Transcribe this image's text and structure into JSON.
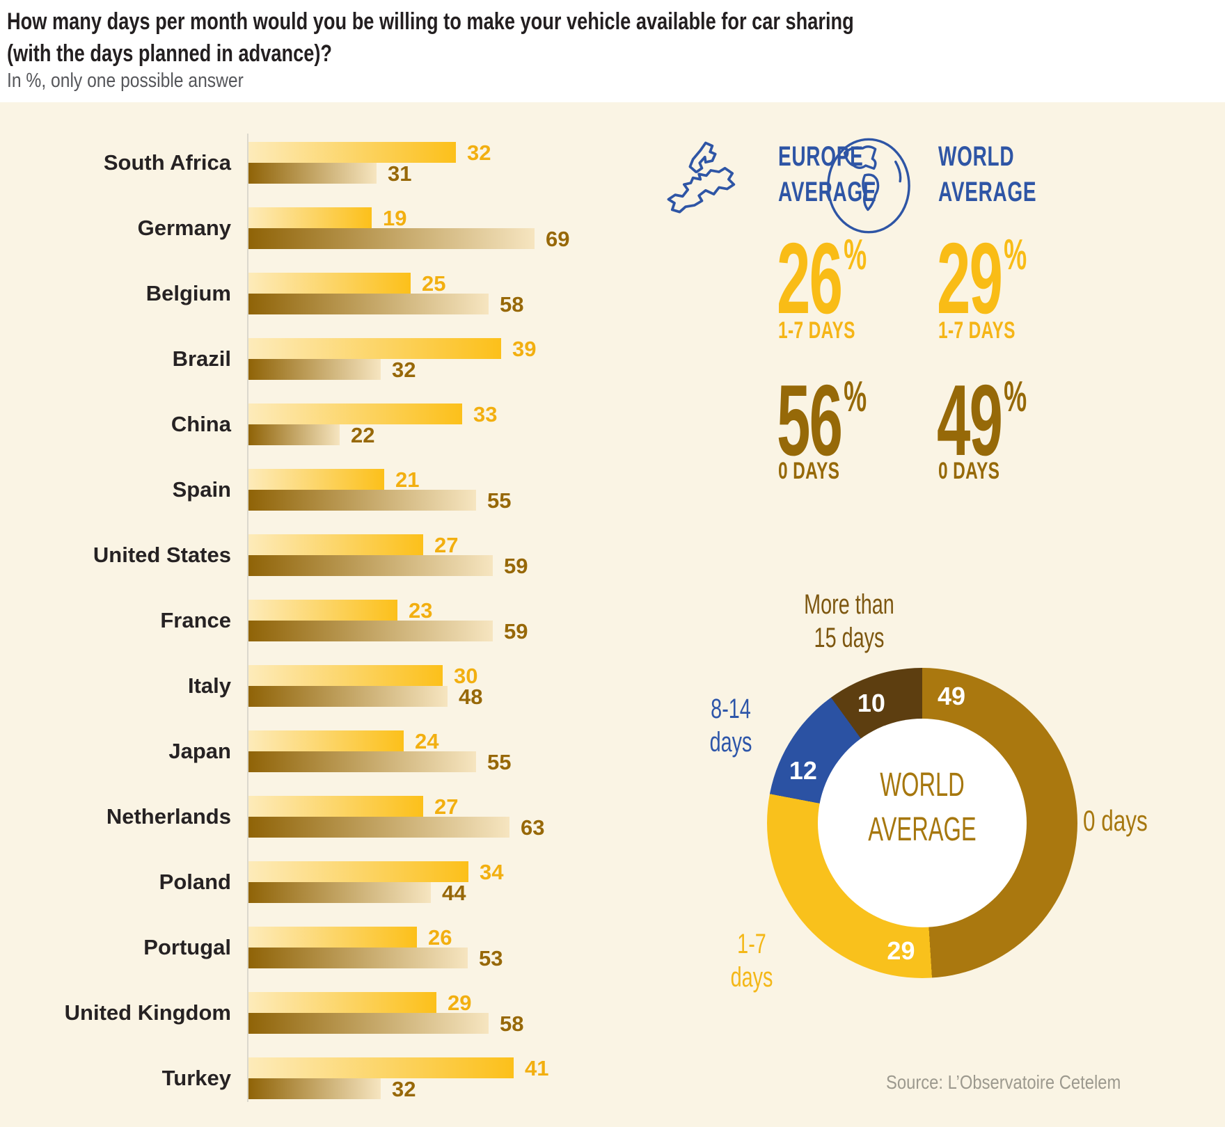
{
  "header": {
    "title_line1": "How many days per month would you be willing to make your vehicle available for car sharing",
    "title_line2": "(with the days planned in advance)?",
    "subtitle": "In %, only one possible answer"
  },
  "chart_data": [
    {
      "type": "bar",
      "orientation": "horizontal",
      "unit": "%",
      "value_labels": true,
      "categories": [
        "South Africa",
        "Germany",
        "Belgium",
        "Brazil",
        "China",
        "Spain",
        "United States",
        "France",
        "Italy",
        "Japan",
        "Netherlands",
        "Poland",
        "Portugal",
        "United Kingdom",
        "Turkey"
      ],
      "series": [
        {
          "name": "1-7 days",
          "bar_gradient": [
            "#FDEBBA",
            "#FCC01A"
          ],
          "label_color": "#F2AF10",
          "values": [
            32,
            19,
            25,
            39,
            33,
            21,
            27,
            23,
            30,
            24,
            27,
            34,
            26,
            29,
            41
          ]
        },
        {
          "name": "0 days",
          "bar_gradient": [
            "#8F6307",
            "#F6E5C0"
          ],
          "label_color": "#976808",
          "values": [
            31,
            69,
            58,
            32,
            22,
            55,
            59,
            59,
            48,
            55,
            63,
            44,
            53,
            58,
            32
          ]
        }
      ]
    },
    {
      "type": "pie",
      "donut": true,
      "title": "WORLD AVERAGE",
      "labels": [
        "0 days",
        "1-7 days",
        "8-14 days",
        "More than 15 days"
      ],
      "values": [
        49,
        29,
        12,
        10
      ],
      "colors": [
        "#AA780F",
        "#F9C11C",
        "#2B52A3",
        "#5D3E10"
      ],
      "start_angle_deg": 0,
      "direction": "clockwise",
      "center_label_line1": "WORLD",
      "center_label_line2": "AVERAGE",
      "callouts": {
        "more15_line1": "More than",
        "more15_line2": "15 days",
        "d814_line1": "8-14",
        "d814_line2": "days",
        "d17_line1": "1-7",
        "d17_line2": "days",
        "d0": "0 days"
      }
    }
  ],
  "panels": {
    "europe": {
      "heading_line1": "EUROPE",
      "heading_line2": "AVERAGE",
      "stat_1_7_value": "26",
      "stat_1_7_unit": "%",
      "stat_1_7_label": "1-7 DAYS",
      "stat_0_value": "56",
      "stat_0_unit": "%",
      "stat_0_label": "0 DAYS"
    },
    "world": {
      "heading_line1": "WORLD",
      "heading_line2": "AVERAGE",
      "stat_1_7_value": "29",
      "stat_1_7_unit": "%",
      "stat_1_7_label": "1-7 DAYS",
      "stat_0_value": "49",
      "stat_0_unit": "%",
      "stat_0_label": "0 DAYS"
    }
  },
  "icons": {
    "europe": "europe-map-icon",
    "world": "globe-icon"
  },
  "source": "Source: L’Observatoire Cetelem",
  "colors": {
    "background_cream": "#FAF4E4",
    "accent_yellow": "#F5B517",
    "accent_brown": "#976808",
    "accent_blue": "#2E55A5",
    "title_text": "#231F20",
    "subtitle_text": "#55565A",
    "source_text": "#9C998E"
  }
}
